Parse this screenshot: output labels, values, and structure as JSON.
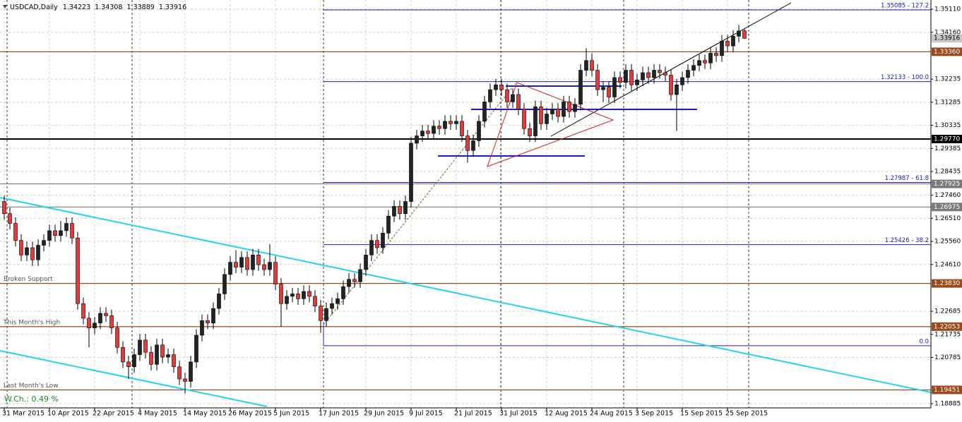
{
  "chart_data": {
    "type": "candlestick",
    "symbol": "USDCAD,Daily",
    "weekly_change": "W.Ch.: 0.49 %",
    "categories": [
      "31 Mar 2015",
      null,
      null,
      null,
      null,
      null,
      null,
      null,
      "10 Apr 2015",
      null,
      null,
      null,
      null,
      null,
      null,
      null,
      "22 Apr 2015",
      null,
      null,
      null,
      null,
      null,
      null,
      null,
      "4 May 2015",
      null,
      null,
      null,
      null,
      null,
      null,
      null,
      "14 May 2015",
      null,
      null,
      null,
      null,
      null,
      null,
      null,
      "26 May 2015",
      null,
      null,
      null,
      null,
      null,
      null,
      null,
      "5 Jun 2015",
      null,
      null,
      null,
      null,
      null,
      null,
      null,
      "17 Jun 2015",
      null,
      null,
      null,
      null,
      null,
      null,
      null,
      "29 Jun 2015",
      null,
      null,
      null,
      null,
      null,
      null,
      null,
      "9 Jul 2015",
      null,
      null,
      null,
      null,
      null,
      null,
      null,
      "21 Jul 2015",
      null,
      null,
      null,
      null,
      null,
      null,
      null,
      "31 Jul 2015",
      null,
      null,
      null,
      null,
      null,
      null,
      null,
      "12 Aug 2015",
      null,
      null,
      null,
      null,
      null,
      null,
      null,
      "24 Aug 2015",
      null,
      null,
      null,
      null,
      null,
      null,
      null,
      "3 Sep 2015",
      null,
      null,
      null,
      null,
      null,
      null,
      null,
      "15 Sep 2015",
      null,
      null,
      null,
      null,
      null,
      null,
      null,
      "25 Sep 2015",
      null,
      null,
      null
    ],
    "open": [
      1.272,
      1.267,
      1.263,
      1.256,
      1.25,
      1.253,
      1.248,
      1.254,
      1.256,
      1.26,
      1.258,
      1.26,
      1.263,
      1.257,
      1.23,
      1.224,
      1.22,
      1.222,
      1.226,
      1.225,
      1.22,
      1.212,
      1.206,
      1.204,
      1.209,
      1.215,
      1.21,
      1.205,
      1.213,
      1.208,
      1.209,
      1.204,
      1.199,
      1.198,
      1.206,
      1.217,
      1.223,
      1.222,
      1.228,
      1.234,
      1.242,
      1.247,
      1.245,
      1.249,
      1.244,
      1.25,
      1.246,
      1.244,
      1.247,
      1.238,
      1.23,
      1.233,
      1.234,
      1.232,
      1.235,
      1.233,
      1.229,
      1.223,
      1.228,
      1.23,
      1.232,
      1.237,
      1.24,
      1.239,
      1.244,
      1.25,
      1.256,
      1.253,
      1.259,
      1.266,
      1.27,
      1.267,
      1.272,
      1.296,
      1.299,
      1.301,
      1.3,
      1.303,
      1.302,
      1.305,
      1.304,
      1.305,
      1.299,
      1.293,
      1.297,
      1.305,
      1.313,
      1.318,
      1.32,
      1.318,
      1.313,
      1.316,
      1.31,
      1.302,
      1.299,
      1.311,
      1.304,
      1.308,
      1.31,
      1.307,
      1.313,
      1.309,
      1.312,
      1.326,
      1.33,
      1.326,
      1.318,
      1.319,
      1.315,
      1.323,
      1.321,
      1.326,
      1.32,
      1.322,
      1.325,
      1.323,
      1.326,
      1.325,
      1.324,
      1.316,
      1.32,
      1.323,
      1.326,
      1.328,
      1.33,
      1.329,
      1.333,
      1.332,
      1.338,
      1.336,
      1.34,
      1.34223
    ],
    "high": [
      1.2745,
      1.2695,
      1.2655,
      1.2585,
      1.2555,
      1.2555,
      1.2565,
      1.2585,
      1.2625,
      1.2625,
      1.264,
      1.2655,
      1.2655,
      1.2595,
      1.2325,
      1.2265,
      1.2245,
      1.2285,
      1.2285,
      1.2275,
      1.2225,
      1.2145,
      1.2085,
      1.2115,
      1.2175,
      1.2175,
      1.2125,
      1.2155,
      1.2155,
      1.2115,
      1.2115,
      1.2065,
      1.2015,
      1.2085,
      1.2195,
      1.2255,
      1.2255,
      1.2305,
      1.2365,
      1.2445,
      1.2495,
      1.252,
      1.2515,
      1.2515,
      1.2525,
      1.2525,
      1.2485,
      1.2545,
      1.2495,
      1.2405,
      1.2355,
      1.2365,
      1.2365,
      1.2375,
      1.2375,
      1.2355,
      1.2315,
      1.2305,
      1.2325,
      1.2345,
      1.2395,
      1.2425,
      1.2425,
      1.2465,
      1.2525,
      1.2585,
      1.2585,
      1.2615,
      1.2685,
      1.2725,
      1.2725,
      1.2745,
      1.2985,
      1.3015,
      1.3035,
      1.3035,
      1.3055,
      1.3055,
      1.3075,
      1.3075,
      1.3075,
      1.3075,
      1.3015,
      1.2995,
      1.3075,
      1.3155,
      1.3205,
      1.3225,
      1.3225,
      1.3205,
      1.3185,
      1.3185,
      1.3125,
      1.3045,
      1.3135,
      1.3135,
      1.3105,
      1.3125,
      1.3125,
      1.3155,
      1.3155,
      1.3145,
      1.3285,
      1.335,
      1.333,
      1.3285,
      1.3215,
      1.3215,
      1.3255,
      1.3255,
      1.3285,
      1.3285,
      1.3245,
      1.3275,
      1.3275,
      1.3285,
      1.3285,
      1.3275,
      1.3265,
      1.3225,
      1.3255,
      1.3285,
      1.3305,
      1.3325,
      1.3325,
      1.3355,
      1.3355,
      1.3405,
      1.3405,
      1.3425,
      1.3447,
      1.34308
    ],
    "low": [
      1.2645,
      1.2605,
      1.2535,
      1.2475,
      1.2475,
      1.2455,
      1.2455,
      1.2515,
      1.2535,
      1.2555,
      1.2555,
      1.2575,
      1.2545,
      1.2275,
      1.2215,
      1.212,
      1.2175,
      1.2195,
      1.2225,
      1.2175,
      1.2095,
      1.2035,
      1.199,
      1.2015,
      1.2065,
      1.2075,
      1.2025,
      1.2025,
      1.2055,
      1.2055,
      1.2015,
      1.1965,
      1.193,
      1.1955,
      1.2035,
      1.2145,
      1.2195,
      1.2195,
      1.2255,
      1.2315,
      1.2395,
      1.2425,
      1.2425,
      1.2415,
      1.2415,
      1.2435,
      1.2415,
      1.2415,
      1.2355,
      1.2205,
      1.2275,
      1.2305,
      1.2295,
      1.2295,
      1.2305,
      1.2265,
      1.218,
      1.2205,
      1.2255,
      1.2275,
      1.2295,
      1.2345,
      1.2365,
      1.2365,
      1.2415,
      1.2475,
      1.2505,
      1.2505,
      1.2565,
      1.2635,
      1.2645,
      1.2645,
      1.2695,
      1.2935,
      1.2965,
      1.2975,
      1.2975,
      1.2995,
      1.2995,
      1.3015,
      1.3015,
      1.2965,
      1.288,
      1.2905,
      1.2945,
      1.3025,
      1.3105,
      1.3155,
      1.3155,
      1.3105,
      1.3105,
      1.3075,
      1.2995,
      1.2965,
      1.2965,
      1.3015,
      1.3015,
      1.3055,
      1.3045,
      1.3045,
      1.3065,
      1.3065,
      1.3095,
      1.3235,
      1.3235,
      1.3155,
      1.313,
      1.3125,
      1.3125,
      1.3185,
      1.3185,
      1.3175,
      1.3175,
      1.3195,
      1.3205,
      1.3205,
      1.3225,
      1.3215,
      1.3135,
      1.301,
      1.3175,
      1.3205,
      1.3235,
      1.3255,
      1.3265,
      1.3265,
      1.3295,
      1.3295,
      1.3335,
      1.3335,
      1.3375,
      1.33889
    ],
    "close": [
      1.267,
      1.263,
      1.256,
      1.25,
      1.253,
      1.248,
      1.254,
      1.256,
      1.26,
      1.258,
      1.26,
      1.263,
      1.257,
      1.23,
      1.224,
      1.22,
      1.222,
      1.226,
      1.225,
      1.22,
      1.212,
      1.206,
      1.204,
      1.209,
      1.215,
      1.21,
      1.205,
      1.213,
      1.208,
      1.209,
      1.204,
      1.199,
      1.198,
      1.206,
      1.217,
      1.223,
      1.222,
      1.228,
      1.234,
      1.242,
      1.247,
      1.245,
      1.249,
      1.244,
      1.25,
      1.246,
      1.244,
      1.247,
      1.238,
      1.23,
      1.233,
      1.234,
      1.232,
      1.235,
      1.233,
      1.229,
      1.223,
      1.228,
      1.23,
      1.232,
      1.237,
      1.24,
      1.239,
      1.244,
      1.25,
      1.256,
      1.253,
      1.259,
      1.266,
      1.27,
      1.267,
      1.272,
      1.296,
      1.299,
      1.301,
      1.3,
      1.303,
      1.302,
      1.305,
      1.304,
      1.305,
      1.299,
      1.293,
      1.297,
      1.305,
      1.313,
      1.318,
      1.32,
      1.318,
      1.313,
      1.316,
      1.31,
      1.302,
      1.299,
      1.311,
      1.304,
      1.308,
      1.31,
      1.307,
      1.313,
      1.309,
      1.312,
      1.326,
      1.33,
      1.326,
      1.318,
      1.319,
      1.315,
      1.323,
      1.321,
      1.326,
      1.32,
      1.322,
      1.325,
      1.323,
      1.326,
      1.325,
      1.324,
      1.316,
      1.32,
      1.323,
      1.326,
      1.328,
      1.33,
      1.329,
      1.333,
      1.332,
      1.338,
      1.336,
      1.34,
      1.3422,
      1.33916
    ],
    "colors": {
      "up": "#222222",
      "down": "#e23b3b",
      "wick": "#000000",
      "grid": "#cfcfb4",
      "fib": "#1a1acd"
    },
    "ylim": [
      1.1871,
      1.3549
    ],
    "yticks": [
      {
        "value": 1.3511,
        "label": "1.35110"
      },
      {
        "value": 1.3416,
        "label": "1.34160"
      },
      1.32235,
      1.31285,
      1.30335,
      1.29385,
      1.28435,
      {
        "value": 1.2746,
        "label": "1.27460"
      },
      {
        "value": 1.2651,
        "label": "1.26510"
      },
      {
        "value": 1.2556,
        "label": "1.25560"
      },
      {
        "value": 1.2461,
        "label": "1.24610"
      },
      1.22685,
      1.21735,
      1.20785,
      1.18885
    ],
    "grid": true,
    "levels": [
      {
        "value": 1.3336,
        "label": "1.33360",
        "color": "#9a4a1c"
      },
      {
        "value": 1.2977,
        "label": "1.29770",
        "color": "#000000"
      },
      {
        "value": 1.27925,
        "label": "1.27925",
        "color": "#7a7a7a"
      },
      {
        "value": 1.26975,
        "label": "1.26975",
        "color": "#7a7a7a"
      },
      {
        "value": 1.2383,
        "label": "1.23830",
        "color": "#9a4a1c",
        "note": "Broken Support"
      },
      {
        "value": 1.22053,
        "label": "1.22053",
        "color": "#9a4a1c",
        "note": "This Month's High"
      },
      {
        "value": 1.19451,
        "label": "1.19451",
        "color": "#9a4a1c",
        "note": "Last Month's Low"
      }
    ],
    "fib": [
      {
        "value": 1.35085,
        "label": "1.35085 - 127.2"
      },
      {
        "value": 1.32133,
        "label": "1.32133 - 100.0"
      },
      {
        "value": 1.27987,
        "label": "1.27987 - 61.8"
      },
      {
        "value": 1.25426,
        "label": "1.25426 - 38.2"
      },
      {
        "value": 1.2127,
        "label": "0.0"
      }
    ]
  }
}
